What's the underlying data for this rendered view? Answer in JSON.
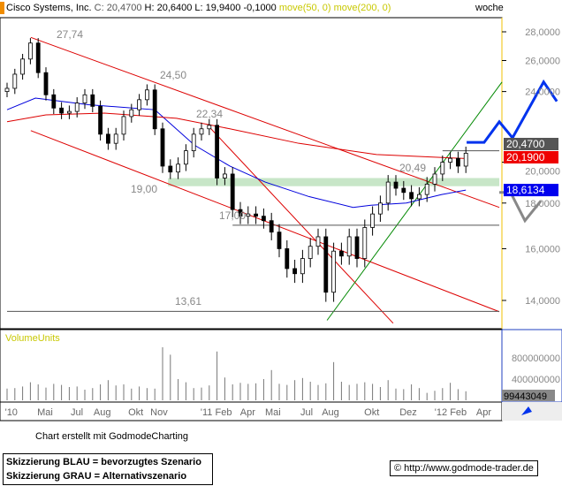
{
  "header": {
    "title": "Cisco Systems, Inc.",
    "c_label": "C: 20,4700",
    "h_label": "H: 20,6400",
    "l_label": "L: 19,9400",
    "change": "-0,1000",
    "ma50": "move(50, 0)",
    "ma200": "move(200, 0)",
    "period": "woche"
  },
  "chart_data": {
    "type": "candlestick",
    "y_scale": "log",
    "ylim": [
      13.2,
      29.5
    ],
    "yticks": [
      {
        "v": 14,
        "label": "14,0000"
      },
      {
        "v": 16,
        "label": "16,0000"
      },
      {
        "v": 18,
        "label": "18,0000"
      },
      {
        "v": 20,
        "label": "20,0000"
      },
      {
        "v": 24,
        "label": "24,0000"
      },
      {
        "v": 26,
        "label": "26,0000"
      },
      {
        "v": 28,
        "label": "28,0000"
      }
    ],
    "xticks": [
      {
        "w": -1,
        "label": "'10"
      },
      {
        "w": 7.3,
        "label": "Mai"
      },
      {
        "w": 15.9,
        "label": "Jul"
      },
      {
        "w": 21.8,
        "label": "Aug"
      },
      {
        "w": 30.7,
        "label": "Okt"
      },
      {
        "w": 36.4,
        "label": "Nov"
      },
      {
        "w": 49.3,
        "label": "'11 Feb"
      },
      {
        "w": 59.5,
        "label": "Apr"
      },
      {
        "w": 65.9,
        "label": "Mai"
      },
      {
        "w": 75,
        "label": "Jul"
      },
      {
        "w": 80.5,
        "label": "Aug"
      },
      {
        "w": 91.4,
        "label": "Okt"
      },
      {
        "w": 100.5,
        "label": "Dez"
      },
      {
        "w": 109.5,
        "label": "'12 Feb"
      },
      {
        "w": 120.2,
        "label": "Apr"
      }
    ],
    "closes": [
      24.2,
      25.1,
      26.1,
      27.2,
      25.2,
      23.8,
      23.0,
      22.7,
      22.8,
      23.3,
      23.8,
      23.1,
      21.5,
      21.0,
      21.5,
      22.5,
      22.9,
      23.5,
      24.1,
      21.8,
      19.8,
      19.5,
      19.9,
      20.6,
      21.5,
      21.8,
      22.0,
      19.2,
      19.4,
      17.7,
      17.4,
      17.5,
      17.4,
      17.2,
      16.7,
      16.0,
      15.2,
      15.0,
      15.6,
      16.1,
      16.5,
      14.3,
      15.9,
      15.7,
      16.5,
      15.6,
      16.9,
      17.5,
      18.0,
      19.0,
      18.7,
      18.5,
      18.2,
      18.4,
      18.9,
      19.4,
      20.0,
      20.2,
      19.8,
      20.47
    ],
    "last": {
      "close": "20,4700",
      "ma200": "20,1900",
      "ma50": "18,6134"
    },
    "series": [
      {
        "name": "move(50, 0)",
        "color": "#0000dd",
        "points": [
          [
            0,
            22.9
          ],
          [
            7.3,
            23.6
          ],
          [
            20.9,
            23.2
          ],
          [
            38,
            22.9
          ],
          [
            48.2,
            20.9
          ],
          [
            57.3,
            19.8
          ],
          [
            66.4,
            19.0
          ],
          [
            77.7,
            18.3
          ],
          [
            89,
            17.8
          ],
          [
            93.6,
            17.9
          ],
          [
            102.7,
            18.0
          ],
          [
            111.8,
            18.4
          ],
          [
            118,
            18.61
          ]
        ]
      },
      {
        "name": "move(200, 0)",
        "color": "#dd0000",
        "points": [
          [
            0,
            22.2
          ],
          [
            10,
            22.6
          ],
          [
            25,
            22.7
          ],
          [
            43.6,
            22.4
          ],
          [
            57.3,
            21.8
          ],
          [
            75,
            21.0
          ],
          [
            95,
            20.4
          ],
          [
            118,
            20.19
          ]
        ]
      }
    ],
    "trendlines": [
      {
        "color": "#dd0000",
        "points": [
          [
            6.1,
            27.6
          ],
          [
            126.6,
            17.8
          ]
        ]
      },
      {
        "color": "#dd0000",
        "points": [
          [
            6.1,
            21.7
          ],
          [
            126.6,
            13.6
          ]
        ]
      },
      {
        "color": "#dd0000",
        "points": [
          [
            51.6,
            22.0
          ],
          [
            99.3,
            13.2
          ]
        ]
      },
      {
        "color": "#008800",
        "points": [
          [
            82.3,
            13.3
          ],
          [
            127.3,
            24.6
          ]
        ]
      },
      {
        "color": "#555555",
        "points": [
          [
            112,
            20.6
          ],
          [
            126.6,
            20.6
          ]
        ]
      },
      {
        "color": "#555555",
        "points": [
          [
            58,
            17.0
          ],
          [
            126.6,
            17.0
          ]
        ]
      },
      {
        "color": "#555555",
        "points": [
          [
            0,
            13.61
          ],
          [
            126.6,
            13.61
          ]
        ]
      }
    ],
    "support_band": {
      "from": 18.8,
      "to": 19.2,
      "start": 41.4,
      "color": "#c8e6c8"
    },
    "scenario_blue": {
      "color": "#0033ee",
      "points": [
        [
          118.2,
          21.05
        ],
        [
          122.7,
          21.05
        ],
        [
          126.6,
          22.2
        ],
        [
          130,
          21.3
        ],
        [
          138,
          24.6
        ],
        [
          141.4,
          23.4
        ]
      ]
    },
    "scenario_gray": {
      "color": "#888888",
      "points": [
        [
          126.6,
          18.5
        ],
        [
          129.5,
          18.5
        ],
        [
          133.2,
          17.2
        ],
        [
          137.3,
          18.1
        ]
      ]
    },
    "annotations": [
      "27,74",
      "24,50",
      "22,34",
      "20,49",
      "19,00",
      "17,00",
      "13,61"
    ],
    "volume": {
      "label": "VolumeUnits",
      "ticks": [
        {
          "v": 400000000,
          "label": "400000000"
        },
        {
          "v": 800000000,
          "label": "800000000"
        }
      ],
      "last": "99443049",
      "values": [
        220,
        230,
        260,
        340,
        300,
        240,
        310,
        290,
        250,
        260,
        200,
        230,
        300,
        380,
        280,
        300,
        220,
        260,
        230,
        220,
        1000,
        860,
        400,
        340,
        230,
        240,
        280,
        920,
        430,
        300,
        330,
        310,
        320,
        400,
        570,
        310,
        290,
        380,
        420,
        350,
        290,
        320,
        720,
        350,
        290,
        310,
        340,
        310,
        250,
        380,
        220,
        210,
        300,
        230,
        140,
        180,
        230,
        330,
        210,
        170
      ]
    }
  },
  "footer": {
    "credit": "Chart erstellt mit GodmodeCharting",
    "legend_blue": "Skizzierung BLAU = bevorzugtes Szenario",
    "legend_gray": "Skizzierung GRAU = Alternativszenario",
    "copyright": "© http://www.godmode-trader.de"
  }
}
